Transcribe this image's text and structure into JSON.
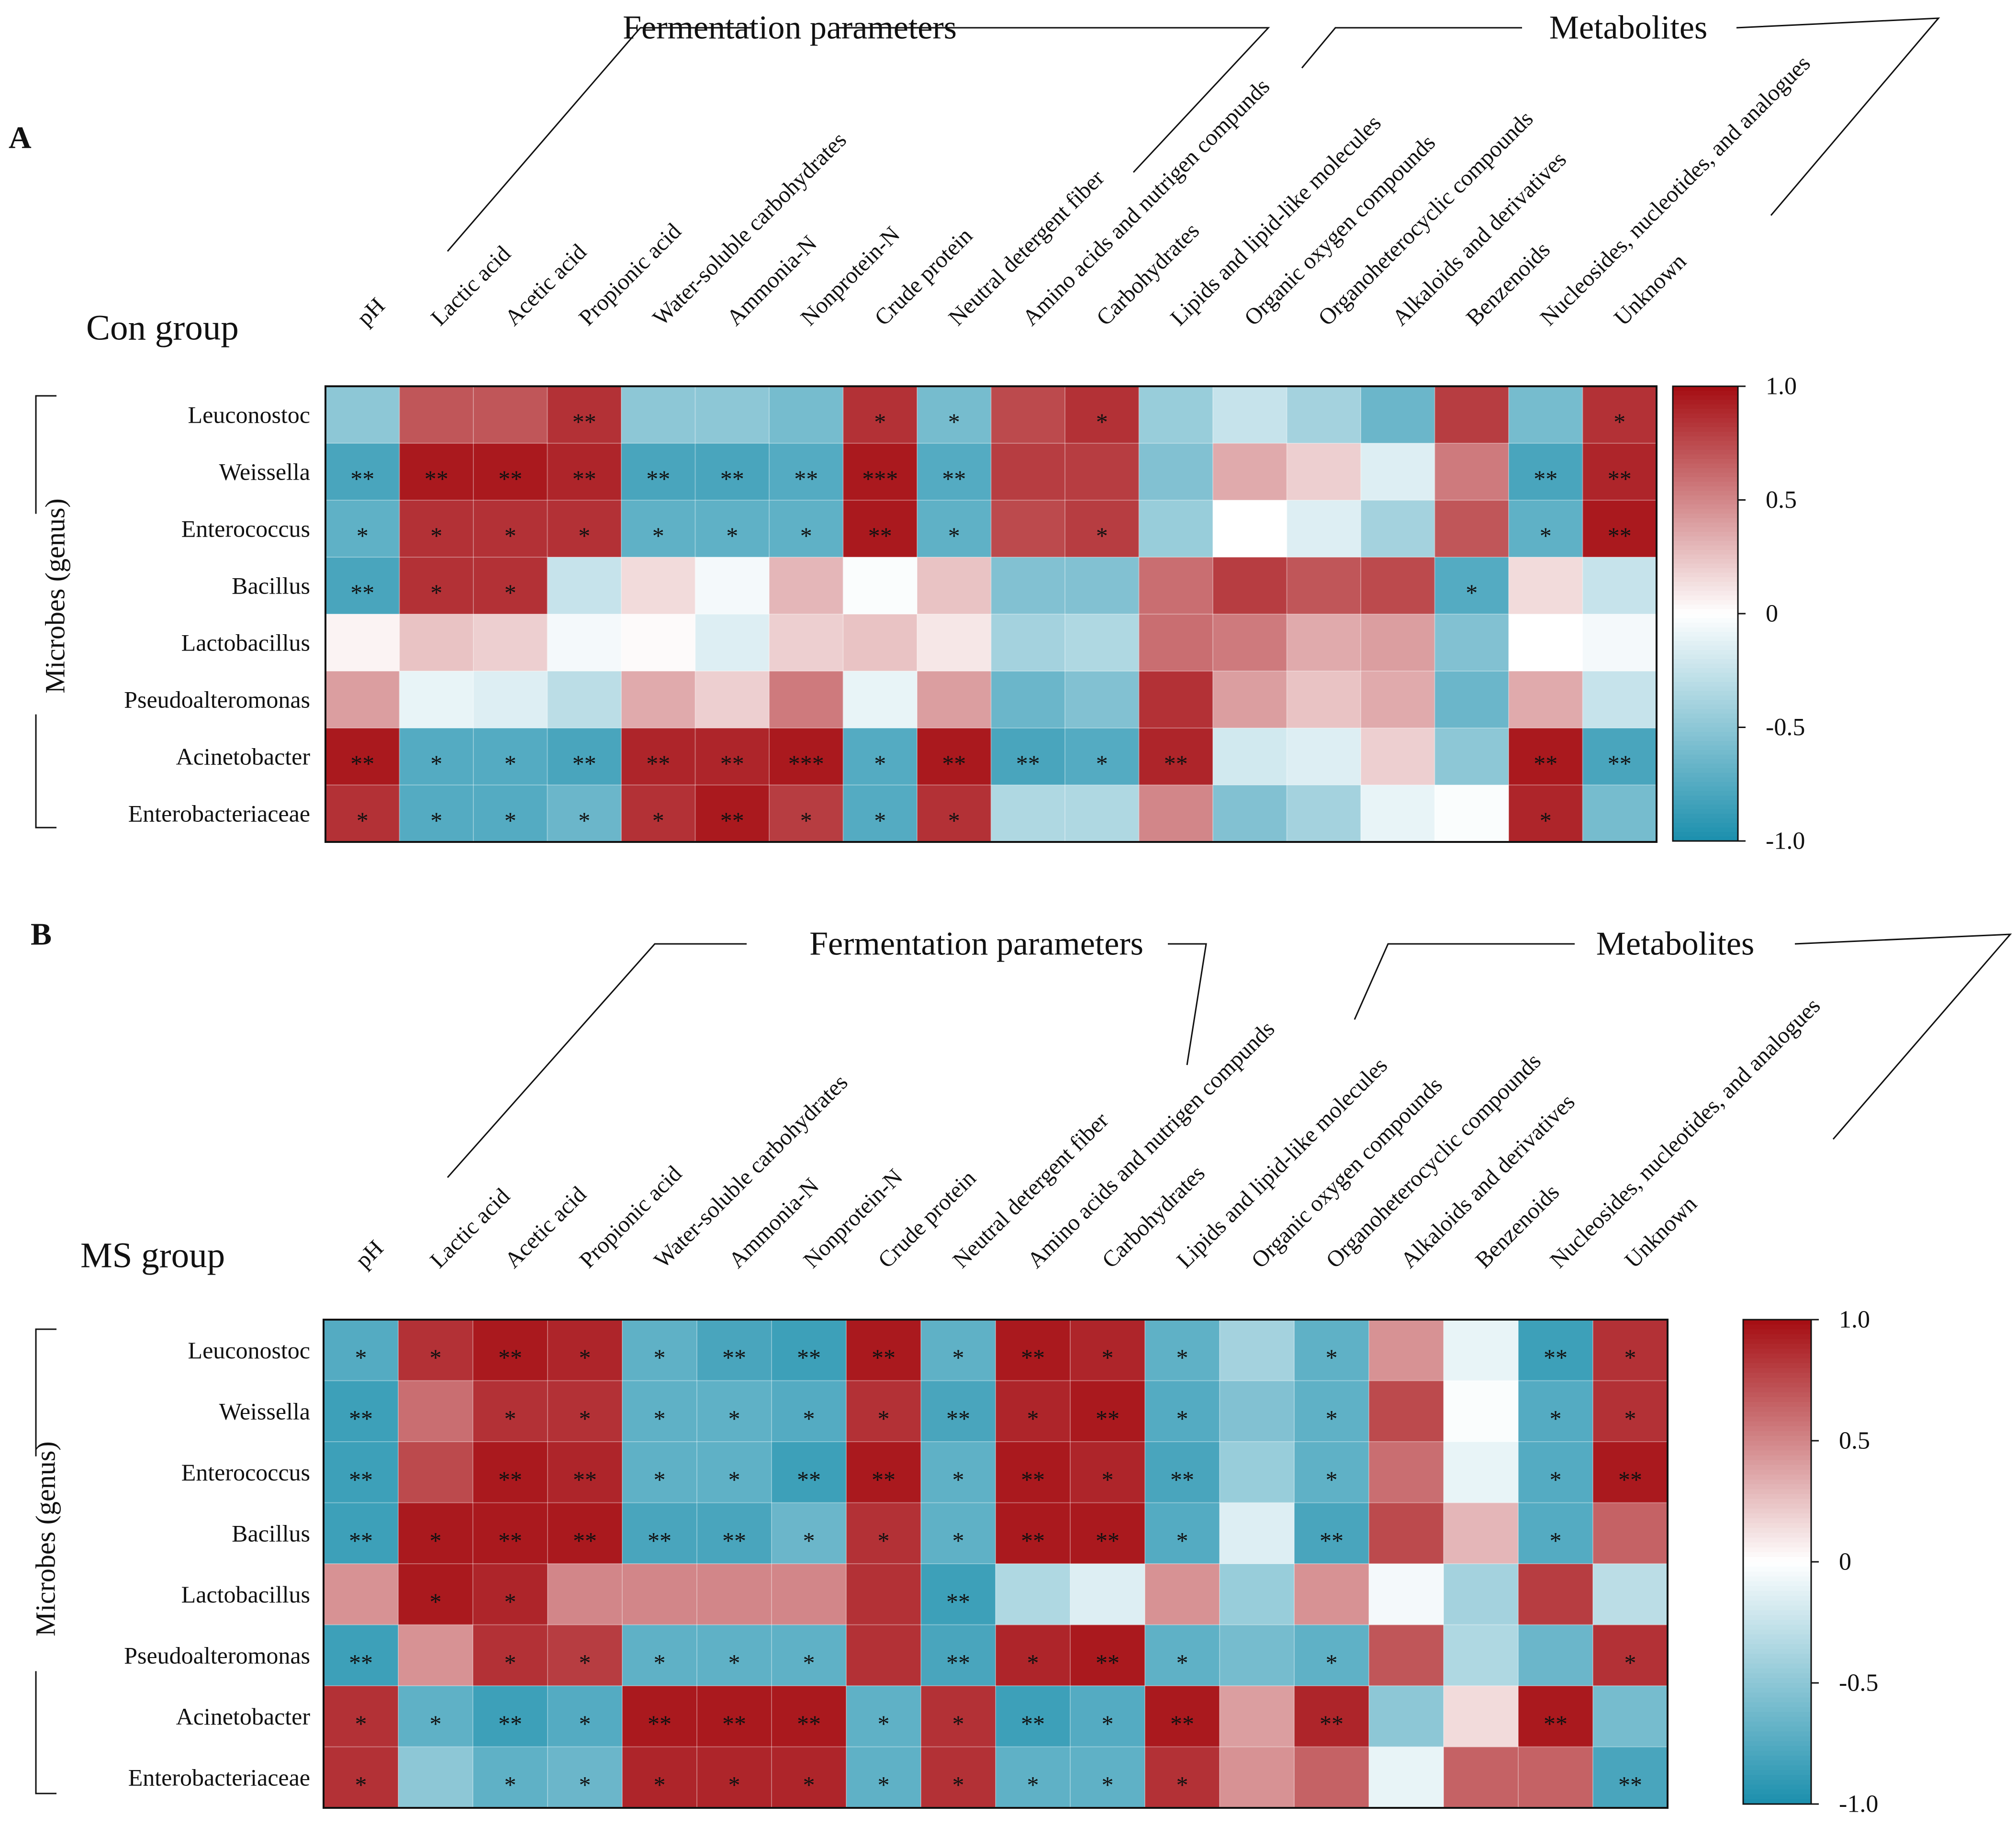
{
  "figure": {
    "colorscale": {
      "low": "#1b8fad",
      "mid": "#ffffff",
      "high": "#a50d12"
    },
    "range": [
      -1.0,
      1.0
    ]
  },
  "chart_data": [
    {
      "type": "heatmap",
      "panel_label": "A",
      "title": "Con group",
      "ylabel": "Microbes (genus)",
      "bracket_labels": [
        "Fermentation parameters",
        "Metabolites"
      ],
      "columns": [
        "pH",
        "Lactic acid",
        "Acetic acid",
        "Propionic acid",
        "Water-soluble carbohydrates",
        "Ammonia-N",
        "Nonprotein-N",
        "Crude protein",
        "Neutral detergent fiber",
        "Amino acids and nutrigen compunds",
        "Carbohydrates",
        "Lipids and lipid-like molecules",
        "Organic oxygen compounds",
        "Organoheterocyclic compounds",
        "Alkaloids and derivatives",
        "Benzenoids",
        "Nucleosides, nucleotides, and analogues",
        "Unknown"
      ],
      "rows": [
        "Leuconostoc",
        "Weissella",
        "Enterococcus",
        "Bacillus",
        "Lactobacillus",
        "Pseudoalteromonas",
        "Acinetobacter",
        "Enterobacteriaceae"
      ],
      "values": [
        [
          -0.5,
          0.7,
          0.7,
          0.85,
          -0.5,
          -0.5,
          -0.6,
          0.85,
          -0.6,
          0.75,
          0.85,
          -0.45,
          -0.25,
          -0.4,
          -0.65,
          0.8,
          -0.6,
          0.85
        ],
        [
          -0.8,
          0.95,
          0.95,
          0.9,
          -0.8,
          -0.8,
          -0.75,
          0.95,
          -0.75,
          0.8,
          0.8,
          -0.55,
          0.35,
          0.2,
          -0.15,
          0.55,
          -0.8,
          0.9
        ],
        [
          -0.7,
          0.85,
          0.85,
          0.85,
          -0.7,
          -0.7,
          -0.7,
          0.95,
          -0.7,
          0.75,
          0.8,
          -0.45,
          0.0,
          -0.15,
          -0.4,
          0.7,
          -0.7,
          0.95
        ],
        [
          -0.8,
          0.85,
          0.85,
          -0.25,
          0.15,
          -0.05,
          0.3,
          -0.02,
          0.25,
          -0.55,
          -0.55,
          0.6,
          0.8,
          0.7,
          0.75,
          -0.75,
          0.15,
          -0.25
        ],
        [
          0.05,
          0.25,
          0.2,
          -0.05,
          0.02,
          -0.15,
          0.2,
          0.25,
          0.1,
          -0.4,
          -0.35,
          0.6,
          0.55,
          0.35,
          0.4,
          -0.55,
          0.0,
          -0.05
        ],
        [
          0.4,
          -0.1,
          -0.15,
          -0.3,
          0.35,
          0.2,
          0.55,
          -0.1,
          0.4,
          -0.65,
          -0.55,
          0.85,
          0.4,
          0.25,
          0.35,
          -0.65,
          0.35,
          -0.25
        ],
        [
          0.95,
          -0.75,
          -0.75,
          -0.8,
          0.9,
          0.9,
          0.95,
          -0.75,
          0.95,
          -0.8,
          -0.75,
          0.9,
          -0.2,
          -0.15,
          0.2,
          -0.5,
          0.95,
          -0.8
        ],
        [
          0.85,
          -0.75,
          -0.75,
          -0.65,
          0.85,
          0.95,
          0.8,
          -0.75,
          0.85,
          -0.35,
          -0.35,
          0.5,
          -0.55,
          -0.4,
          -0.1,
          -0.02,
          0.9,
          -0.6
        ]
      ],
      "stars": [
        [
          "",
          "",
          "",
          "**",
          "",
          "",
          "",
          "*",
          "*",
          "",
          "*",
          "",
          "",
          "",
          "",
          "",
          "",
          "*"
        ],
        [
          "**",
          "**",
          "**",
          "**",
          "**",
          "**",
          "**",
          "***",
          "**",
          "",
          "",
          "",
          "",
          "",
          "",
          "",
          "**",
          "**"
        ],
        [
          "*",
          "*",
          "*",
          "*",
          "*",
          "*",
          "*",
          "**",
          "*",
          "",
          "*",
          "",
          "",
          "",
          "",
          "",
          "*",
          "**"
        ],
        [
          "**",
          "*",
          "*",
          "",
          "",
          "",
          "",
          "",
          "",
          "",
          "",
          "",
          "",
          "",
          "",
          "*",
          "",
          ""
        ],
        [
          "",
          "",
          "",
          "",
          "",
          "",
          "",
          "",
          "",
          "",
          "",
          "",
          "",
          "",
          "",
          "",
          "",
          ""
        ],
        [
          "",
          "",
          "",
          "",
          "",
          "",
          "",
          "",
          "",
          "",
          "",
          "",
          "",
          "",
          "",
          "",
          "",
          ""
        ],
        [
          "**",
          "*",
          "*",
          "**",
          "**",
          "**",
          "***",
          "*",
          "**",
          "**",
          "*",
          "**",
          "",
          "",
          "",
          "",
          "**",
          "**"
        ],
        [
          "*",
          "*",
          "*",
          "*",
          "*",
          "**",
          "*",
          "*",
          "*",
          "",
          "",
          "",
          "",
          "",
          "",
          "",
          "*",
          ""
        ]
      ],
      "colorbar_ticks": [
        "1.0",
        "0.5",
        "0",
        "-0.5",
        "-1.0"
      ]
    },
    {
      "type": "heatmap",
      "panel_label": "B",
      "title": "MS group",
      "ylabel": "Microbes (genus)",
      "bracket_labels": [
        "Fermentation parameters",
        "Metabolites"
      ],
      "columns": [
        "pH",
        "Lactic acid",
        "Acetic acid",
        "Propionic acid",
        "Water-soluble carbohydrates",
        "Ammonia-N",
        "Nonprotein-N",
        "Crude protein",
        "Neutral detergent fiber",
        "Amino acids and nutrigen compunds",
        "Carbohydrates",
        "Lipids and lipid-like molecules",
        "Organic oxygen compounds",
        "Organoheterocyclic compounds",
        "Alkaloids and derivatives",
        "Benzenoids",
        "Nucleosides, nucleotides, and analogues",
        "Unknown"
      ],
      "rows": [
        "Leuconostoc",
        "Weissella",
        "Enterococcus",
        "Bacillus",
        "Lactobacillus",
        "Pseudoalteromonas",
        "Acinetobacter",
        "Enterobacteriaceae"
      ],
      "values": [
        [
          -0.75,
          0.85,
          0.95,
          0.9,
          -0.7,
          -0.8,
          -0.85,
          0.95,
          -0.7,
          0.95,
          0.9,
          -0.7,
          -0.4,
          -0.7,
          0.45,
          -0.1,
          -0.85,
          0.85
        ],
        [
          -0.85,
          0.6,
          0.85,
          0.85,
          -0.7,
          -0.7,
          -0.75,
          0.85,
          -0.8,
          0.9,
          0.95,
          -0.75,
          -0.55,
          -0.7,
          0.75,
          -0.02,
          -0.75,
          0.85
        ],
        [
          -0.85,
          0.75,
          0.95,
          0.9,
          -0.7,
          -0.7,
          -0.85,
          0.95,
          -0.7,
          0.95,
          0.9,
          -0.8,
          -0.45,
          -0.7,
          0.6,
          -0.1,
          -0.75,
          0.95
        ],
        [
          -0.85,
          0.95,
          0.95,
          0.95,
          -0.8,
          -0.8,
          -0.65,
          0.85,
          -0.7,
          0.95,
          0.95,
          -0.75,
          -0.15,
          -0.8,
          0.75,
          0.3,
          -0.75,
          0.65
        ],
        [
          0.45,
          0.95,
          0.9,
          0.5,
          0.5,
          0.5,
          0.5,
          0.85,
          -0.85,
          -0.35,
          -0.15,
          0.45,
          -0.45,
          0.45,
          -0.05,
          -0.4,
          0.8,
          -0.3
        ],
        [
          -0.85,
          0.45,
          0.85,
          0.8,
          -0.7,
          -0.7,
          -0.7,
          0.85,
          -0.8,
          0.9,
          0.95,
          -0.7,
          -0.6,
          -0.7,
          0.7,
          -0.35,
          -0.65,
          0.85
        ],
        [
          0.85,
          -0.7,
          -0.85,
          -0.75,
          0.95,
          0.95,
          0.95,
          -0.7,
          0.85,
          -0.85,
          -0.75,
          0.95,
          0.4,
          0.9,
          -0.5,
          0.15,
          0.95,
          -0.6
        ],
        [
          0.85,
          -0.5,
          -0.7,
          -0.65,
          0.9,
          0.9,
          0.9,
          -0.7,
          0.85,
          -0.7,
          -0.7,
          0.85,
          0.45,
          0.65,
          -0.1,
          0.65,
          0.65,
          -0.8
        ]
      ],
      "stars": [
        [
          "*",
          "*",
          "**",
          "*",
          "*",
          "**",
          "**",
          "**",
          "*",
          "**",
          "*",
          "*",
          "",
          "*",
          "",
          "",
          "**",
          "*"
        ],
        [
          "**",
          "",
          "*",
          "*",
          "*",
          "*",
          "*",
          "*",
          "**",
          "*",
          "**",
          "*",
          "",
          "*",
          "",
          "",
          "*",
          "*"
        ],
        [
          "**",
          "",
          "**",
          "**",
          "*",
          "*",
          "**",
          "**",
          "*",
          "**",
          "*",
          "**",
          "",
          "*",
          "",
          "",
          "*",
          "**"
        ],
        [
          "**",
          "*",
          "**",
          "**",
          "**",
          "**",
          "*",
          "*",
          "*",
          "**",
          "**",
          "*",
          "",
          "**",
          "",
          "",
          "*",
          ""
        ],
        [
          "",
          "*",
          "*",
          "",
          "",
          "",
          "",
          "",
          "**",
          "",
          "",
          "",
          "",
          "",
          "",
          "",
          "",
          ""
        ],
        [
          "**",
          "",
          "*",
          "*",
          "*",
          "*",
          "*",
          "",
          "**",
          "*",
          "**",
          "*",
          "",
          "*",
          "",
          "",
          "",
          "*"
        ],
        [
          "*",
          "*",
          "**",
          "*",
          "**",
          "**",
          "**",
          "*",
          "*",
          "**",
          "*",
          "**",
          "",
          "**",
          "",
          "",
          "**",
          ""
        ],
        [
          "*",
          "",
          "*",
          "*",
          "*",
          "*",
          "*",
          "*",
          "*",
          "*",
          "*",
          "*",
          "",
          "",
          "",
          "",
          "",
          "**"
        ]
      ],
      "colorbar_ticks": [
        "1.0",
        "0.5",
        "0",
        "-0.5",
        "-1.0"
      ]
    }
  ]
}
